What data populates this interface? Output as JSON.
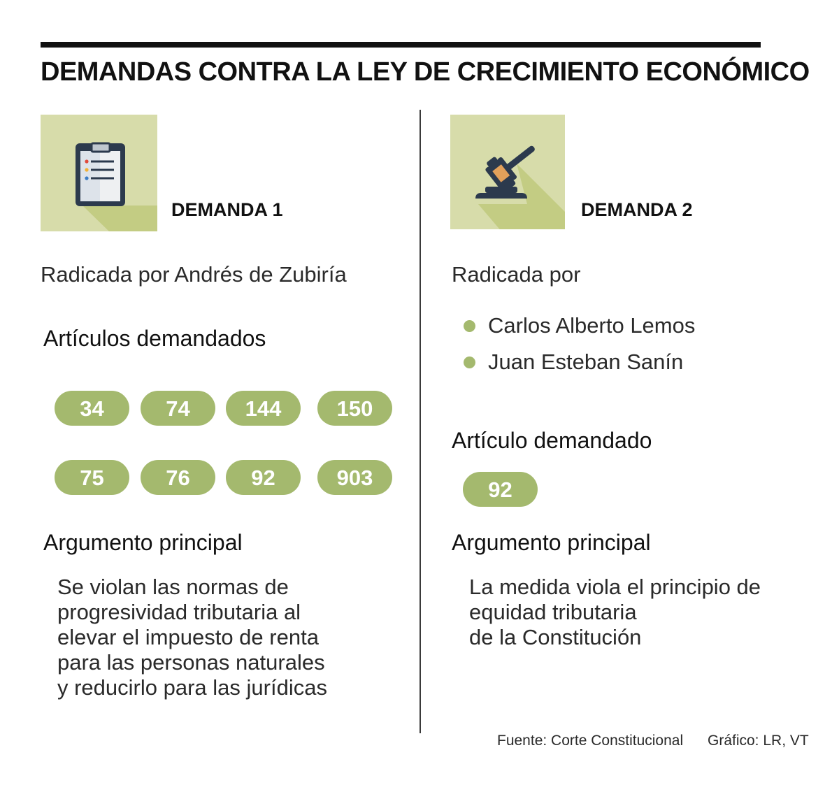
{
  "title": "DEMANDAS CONTRA LA LEY DE CRECIMIENTO ECONÓMICO",
  "demanda1": {
    "label": "DEMANDA 1",
    "icon": "clipboard-icon",
    "radicada": "Radicada por Andrés de Zubiría",
    "articulos_heading": "Artículos demandados",
    "articulos": [
      "34",
      "74",
      "144",
      "150",
      "75",
      "76",
      "92",
      "903"
    ],
    "argumento_heading": "Argumento principal",
    "argumento_lines": [
      "Se violan las normas de",
      "progresividad tributaria al",
      "elevar el impuesto de renta",
      "para las personas naturales",
      "y reducirlo para las jurídicas"
    ]
  },
  "demanda2": {
    "label": "DEMANDA 2",
    "icon": "gavel-icon",
    "radicada": "Radicada por",
    "demandantes": [
      "Carlos Alberto Lemos",
      "Juan Esteban Sanín"
    ],
    "articulo_heading": "Artículo demandado",
    "articulos": [
      "92"
    ],
    "argumento_heading": "Argumento principal",
    "argumento_lines": [
      "La medida viola el principio de",
      "equidad tributaria",
      "de la Constitución"
    ]
  },
  "footer": {
    "fuente": "Fuente: Corte Constitucional",
    "grafico": "Gráfico: LR, VT"
  },
  "colors": {
    "accent_green": "#a4b96e",
    "icon_background": "#d7dcaa",
    "icon_shadow": "#c3cc83",
    "dark_navy": "#2c3a4d",
    "rule": "#111111"
  }
}
